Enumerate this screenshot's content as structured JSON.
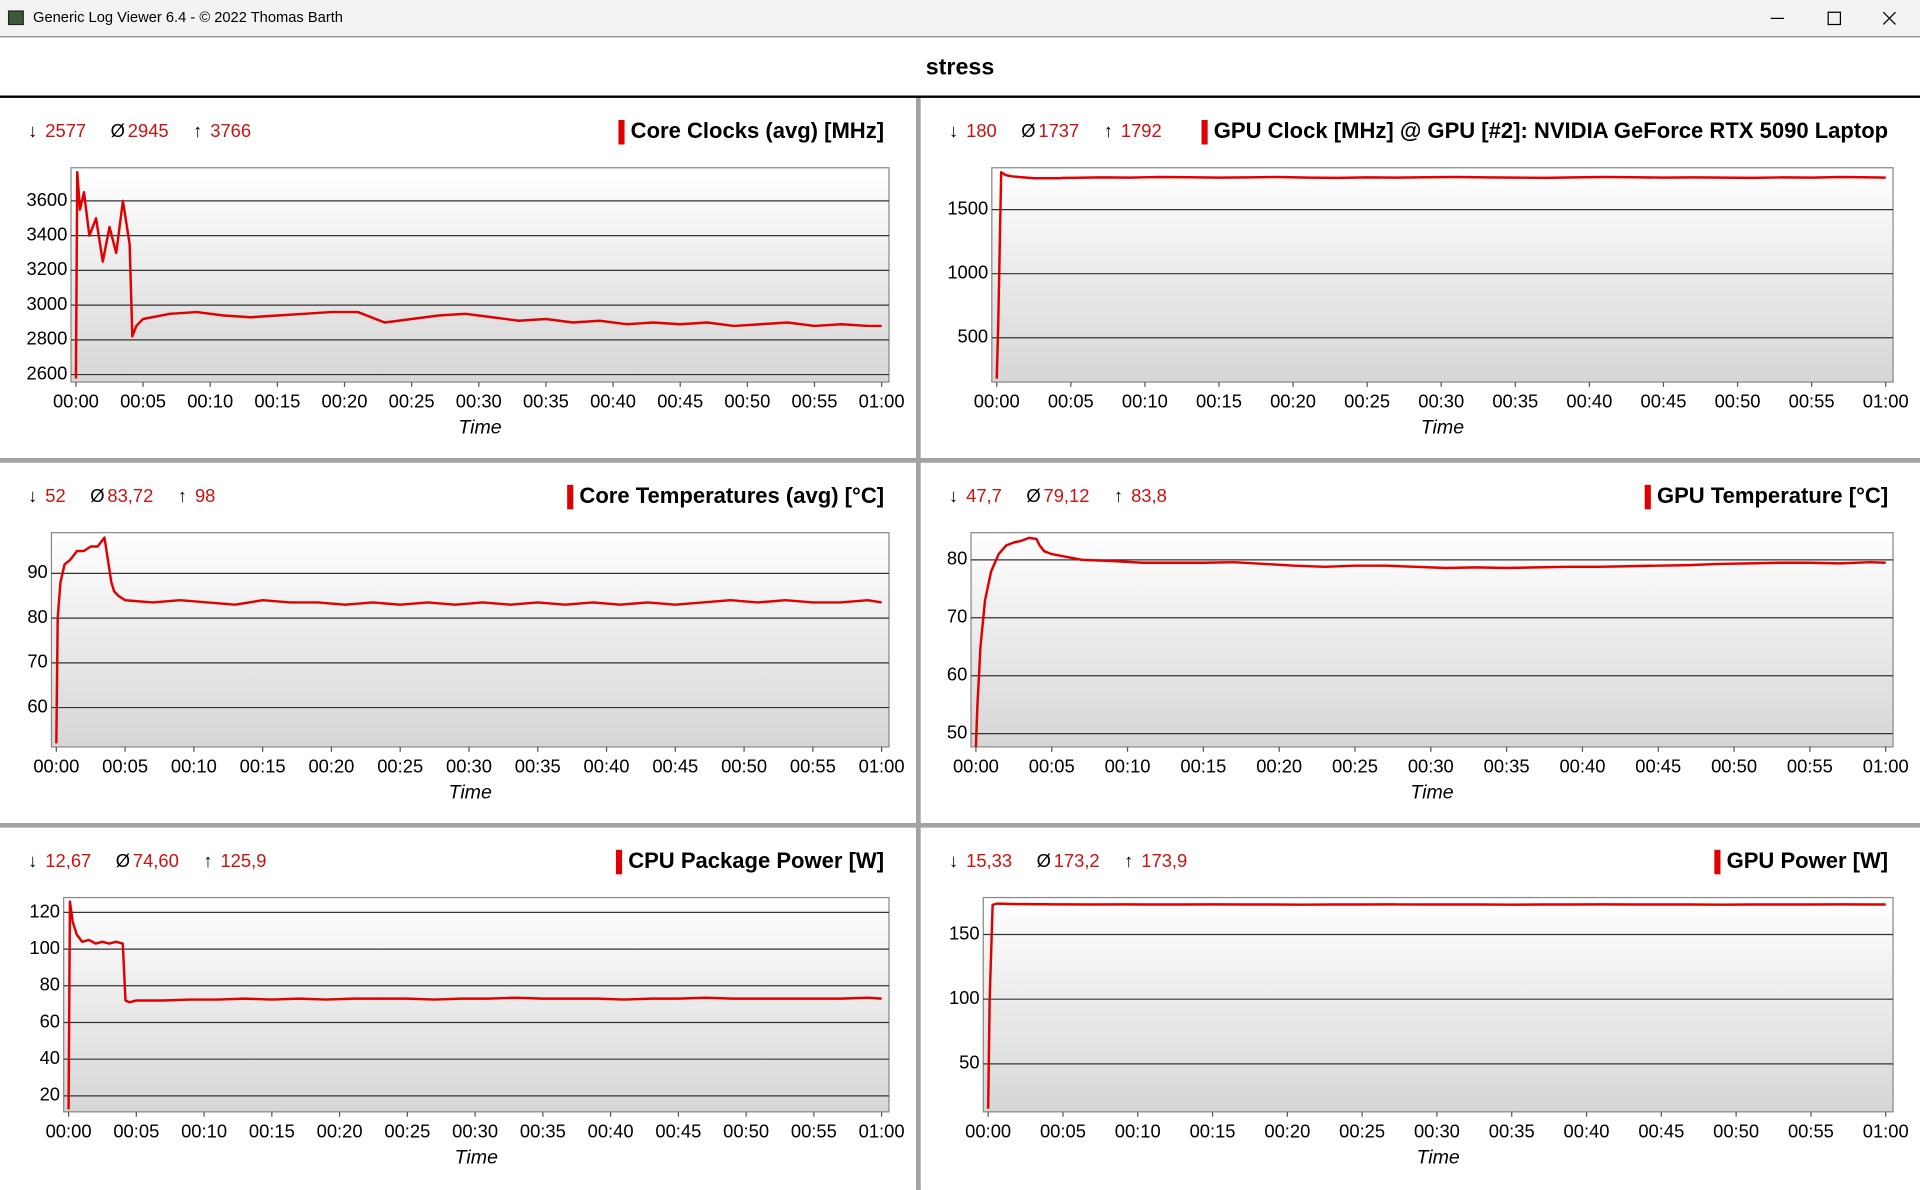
{
  "window": {
    "title": "Generic Log Viewer 6.4 - © 2022 Thomas Barth"
  },
  "header": {
    "title": "stress"
  },
  "stat_symbols": [
    "↓",
    "Ø",
    "↑"
  ],
  "chart_data": [
    {
      "type": "line",
      "xlabel": "Time",
      "stats": [
        2577,
        2945,
        3766
      ],
      "x": [
        0,
        0.1,
        0.3,
        0.6,
        1,
        1.5,
        2,
        2.5,
        3,
        3.5,
        4,
        4.2,
        4.5,
        5,
        7,
        9,
        11,
        13,
        15,
        17,
        19,
        21,
        23,
        25,
        27,
        29,
        31,
        33,
        35,
        37,
        39,
        41,
        43,
        45,
        47,
        49,
        51,
        53,
        55,
        57,
        59,
        60
      ],
      "series": [
        {
          "name": "Core Clocks (avg) [MHz]",
          "color": "#e00000",
          "values": [
            2577,
            3766,
            3550,
            3650,
            3400,
            3500,
            3250,
            3450,
            3300,
            3600,
            3350,
            2820,
            2880,
            2920,
            2950,
            2960,
            2940,
            2930,
            2940,
            2950,
            2960,
            2960,
            2900,
            2920,
            2940,
            2950,
            2930,
            2910,
            2920,
            2900,
            2910,
            2890,
            2900,
            2890,
            2900,
            2880,
            2890,
            2900,
            2880,
            2890,
            2880,
            2880
          ]
        }
      ],
      "xlim": [
        0,
        60
      ],
      "xticks": [
        {
          "value": 0,
          "label": "00:00"
        },
        {
          "value": 5,
          "label": "00:05"
        },
        {
          "value": 10,
          "label": "00:10"
        },
        {
          "value": 15,
          "label": "00:15"
        },
        {
          "value": 20,
          "label": "00:20"
        },
        {
          "value": 25,
          "label": "00:25"
        },
        {
          "value": 30,
          "label": "00:30"
        },
        {
          "value": 35,
          "label": "00:35"
        },
        {
          "value": 40,
          "label": "00:40"
        },
        {
          "value": 45,
          "label": "00:45"
        },
        {
          "value": 50,
          "label": "00:50"
        },
        {
          "value": 55,
          "label": "00:55"
        },
        {
          "value": 60,
          "label": "01:00"
        }
      ],
      "ylim": [
        2557,
        3791
      ],
      "yticks": [
        2600,
        2800,
        3000,
        3200,
        3400,
        3600
      ],
      "grid": true
    },
    {
      "type": "line",
      "xlabel": "Time",
      "stats": [
        180,
        1737,
        1792
      ],
      "x": [
        0,
        0.1,
        0.3,
        0.6,
        1,
        1.5,
        2,
        2.5,
        3,
        3.5,
        4,
        4.2,
        4.5,
        5,
        7,
        9,
        11,
        13,
        15,
        17,
        19,
        21,
        23,
        25,
        27,
        29,
        31,
        33,
        35,
        37,
        39,
        41,
        43,
        45,
        47,
        49,
        51,
        53,
        55,
        57,
        59,
        60
      ],
      "series": [
        {
          "name": "GPU Clock [MHz] @ GPU [#2]: NVIDIA GeForce RTX 5090 Laptop",
          "color": "#e00000",
          "values": [
            180,
            600,
            1792,
            1770,
            1760,
            1755,
            1750,
            1745,
            1745,
            1745,
            1745,
            1745,
            1748,
            1748,
            1752,
            1750,
            1755,
            1753,
            1750,
            1752,
            1755,
            1750,
            1748,
            1752,
            1750,
            1753,
            1755,
            1752,
            1750,
            1748,
            1752,
            1755,
            1753,
            1750,
            1752,
            1750,
            1748,
            1752,
            1750,
            1755,
            1752,
            1750
          ]
        }
      ],
      "xlim": [
        0,
        60
      ],
      "xticks": [
        {
          "value": 0,
          "label": "00:00"
        },
        {
          "value": 5,
          "label": "00:05"
        },
        {
          "value": 10,
          "label": "00:10"
        },
        {
          "value": 15,
          "label": "00:15"
        },
        {
          "value": 20,
          "label": "00:20"
        },
        {
          "value": 25,
          "label": "00:25"
        },
        {
          "value": 30,
          "label": "00:30"
        },
        {
          "value": 35,
          "label": "00:35"
        },
        {
          "value": 40,
          "label": "00:40"
        },
        {
          "value": 45,
          "label": "00:45"
        },
        {
          "value": 50,
          "label": "00:50"
        },
        {
          "value": 55,
          "label": "00:55"
        },
        {
          "value": 60,
          "label": "01:00"
        }
      ],
      "ylim": [
        154,
        1827
      ],
      "yticks": [
        500,
        1000,
        1500
      ],
      "grid": true
    },
    {
      "type": "line",
      "xlabel": "Time",
      "stats": [
        52,
        {
          "value": 83.72,
          "label": "83,72"
        },
        98
      ],
      "x": [
        0,
        0.1,
        0.3,
        0.6,
        1,
        1.5,
        2,
        2.5,
        3,
        3.5,
        4,
        4.2,
        4.5,
        5,
        7,
        9,
        11,
        13,
        15,
        17,
        19,
        21,
        23,
        25,
        27,
        29,
        31,
        33,
        35,
        37,
        39,
        41,
        43,
        45,
        47,
        49,
        51,
        53,
        55,
        57,
        59,
        60
      ],
      "series": [
        {
          "name": "Core Temperatures (avg) [°C]",
          "color": "#e00000",
          "values": [
            52,
            80,
            88,
            92,
            93,
            95,
            95,
            96,
            96,
            98,
            88,
            86,
            85,
            84,
            83.5,
            84,
            83.5,
            83,
            84,
            83.5,
            83.5,
            83,
            83.5,
            83,
            83.5,
            83,
            83.5,
            83,
            83.5,
            83,
            83.5,
            83,
            83.5,
            83,
            83.5,
            84,
            83.5,
            84,
            83.5,
            83.5,
            84,
            83.5
          ]
        }
      ],
      "xlim": [
        0,
        60
      ],
      "xticks": [
        {
          "value": 0,
          "label": "00:00"
        },
        {
          "value": 5,
          "label": "00:05"
        },
        {
          "value": 10,
          "label": "00:10"
        },
        {
          "value": 15,
          "label": "00:15"
        },
        {
          "value": 20,
          "label": "00:20"
        },
        {
          "value": 25,
          "label": "00:25"
        },
        {
          "value": 30,
          "label": "00:30"
        },
        {
          "value": 35,
          "label": "00:35"
        },
        {
          "value": 40,
          "label": "00:40"
        },
        {
          "value": 45,
          "label": "00:45"
        },
        {
          "value": 50,
          "label": "00:50"
        },
        {
          "value": 55,
          "label": "00:55"
        },
        {
          "value": 60,
          "label": "01:00"
        }
      ],
      "ylim": [
        51.2,
        99.1
      ],
      "yticks": [
        60,
        70,
        80,
        90
      ],
      "grid": true
    },
    {
      "type": "line",
      "xlabel": "Time",
      "stats": [
        {
          "value": 47.7,
          "label": "47,7"
        },
        {
          "value": 79.12,
          "label": "79,12"
        },
        {
          "value": 83.8,
          "label": "83,8"
        }
      ],
      "x": [
        0,
        0.1,
        0.3,
        0.6,
        1,
        1.5,
        2,
        2.5,
        3,
        3.5,
        4,
        4.2,
        4.5,
        5,
        7,
        9,
        11,
        13,
        15,
        17,
        19,
        21,
        23,
        25,
        27,
        29,
        31,
        33,
        35,
        37,
        39,
        41,
        43,
        45,
        47,
        49,
        51,
        53,
        55,
        57,
        59,
        60
      ],
      "series": [
        {
          "name": "GPU Temperature [°C]",
          "color": "#e00000",
          "values": [
            47.7,
            55,
            65,
            73,
            78,
            81,
            82.5,
            83,
            83.3,
            83.8,
            83.6,
            82.5,
            81.5,
            81,
            80,
            79.8,
            79.5,
            79.5,
            79.5,
            79.6,
            79.3,
            79,
            78.8,
            79,
            79,
            78.8,
            78.6,
            78.7,
            78.6,
            78.7,
            78.8,
            78.8,
            78.9,
            79,
            79.1,
            79.3,
            79.4,
            79.5,
            79.5,
            79.4,
            79.6,
            79.5
          ]
        }
      ],
      "xlim": [
        0,
        60
      ],
      "xticks": [
        {
          "value": 0,
          "label": "00:00"
        },
        {
          "value": 5,
          "label": "00:05"
        },
        {
          "value": 10,
          "label": "00:10"
        },
        {
          "value": 15,
          "label": "00:15"
        },
        {
          "value": 20,
          "label": "00:20"
        },
        {
          "value": 25,
          "label": "00:25"
        },
        {
          "value": 30,
          "label": "00:30"
        },
        {
          "value": 35,
          "label": "00:35"
        },
        {
          "value": 40,
          "label": "00:40"
        },
        {
          "value": 45,
          "label": "00:45"
        },
        {
          "value": 50,
          "label": "00:50"
        },
        {
          "value": 55,
          "label": "00:55"
        },
        {
          "value": 60,
          "label": "01:00"
        }
      ],
      "ylim": [
        47.7,
        84.7
      ],
      "yticks": [
        50,
        60,
        70,
        80
      ],
      "grid": true
    },
    {
      "type": "line",
      "xlabel": "Time",
      "stats": [
        {
          "value": 12.67,
          "label": "12,67"
        },
        {
          "value": 74.6,
          "label": "74,60"
        },
        {
          "value": 125.9,
          "label": "125,9"
        }
      ],
      "x": [
        0,
        0.1,
        0.3,
        0.6,
        1,
        1.5,
        2,
        2.5,
        3,
        3.5,
        4,
        4.2,
        4.5,
        5,
        7,
        9,
        11,
        13,
        15,
        17,
        19,
        21,
        23,
        25,
        27,
        29,
        31,
        33,
        35,
        37,
        39,
        41,
        43,
        45,
        47,
        49,
        51,
        53,
        55,
        57,
        59,
        60
      ],
      "series": [
        {
          "name": "CPU Package Power [W]",
          "color": "#e00000",
          "values": [
            12.67,
            125.9,
            115,
            108,
            104,
            105,
            103,
            104,
            103,
            104,
            103,
            72,
            71,
            72,
            72,
            72.5,
            72.5,
            73,
            72.5,
            73,
            72.5,
            73,
            73,
            73,
            72.5,
            73,
            73,
            73.5,
            73,
            73,
            73,
            72.5,
            73,
            73,
            73.5,
            73,
            73,
            73,
            73,
            73,
            73.5,
            73
          ]
        }
      ],
      "xlim": [
        0,
        60
      ],
      "xticks": [
        {
          "value": 0,
          "label": "00:00"
        },
        {
          "value": 5,
          "label": "00:05"
        },
        {
          "value": 10,
          "label": "00:10"
        },
        {
          "value": 15,
          "label": "00:15"
        },
        {
          "value": 20,
          "label": "00:20"
        },
        {
          "value": 25,
          "label": "00:25"
        },
        {
          "value": 30,
          "label": "00:30"
        },
        {
          "value": 35,
          "label": "00:35"
        },
        {
          "value": 40,
          "label": "00:40"
        },
        {
          "value": 45,
          "label": "00:45"
        },
        {
          "value": 50,
          "label": "00:50"
        },
        {
          "value": 55,
          "label": "00:55"
        },
        {
          "value": 60,
          "label": "01:00"
        }
      ],
      "ylim": [
        11.3,
        128.1
      ],
      "yticks": [
        20,
        40,
        60,
        80,
        100,
        120
      ],
      "grid": true
    },
    {
      "type": "line",
      "xlabel": "Time",
      "stats": [
        {
          "value": 15.33,
          "label": "15,33"
        },
        {
          "value": 173.2,
          "label": "173,2"
        },
        {
          "value": 173.9,
          "label": "173,9"
        }
      ],
      "x": [
        0,
        0.1,
        0.3,
        0.6,
        1,
        1.5,
        2,
        2.5,
        3,
        3.5,
        4,
        4.2,
        4.5,
        5,
        7,
        9,
        11,
        13,
        15,
        17,
        19,
        21,
        23,
        25,
        27,
        29,
        31,
        33,
        35,
        37,
        39,
        41,
        43,
        45,
        47,
        49,
        51,
        53,
        55,
        57,
        59,
        60
      ],
      "series": [
        {
          "name": "GPU Power [W]",
          "color": "#e00000",
          "values": [
            15.33,
            100,
            173,
            173.9,
            173.8,
            173.6,
            173.5,
            173.5,
            173.4,
            173.4,
            173.4,
            173.3,
            173.3,
            173.3,
            173.2,
            173.3,
            173.2,
            173.2,
            173.3,
            173.2,
            173.2,
            173.1,
            173.2,
            173.2,
            173.3,
            173.2,
            173.2,
            173.2,
            173.1,
            173.2,
            173.2,
            173.3,
            173.2,
            173.2,
            173.2,
            173.1,
            173.2,
            173.2,
            173.2,
            173.3,
            173.2,
            173.2
          ]
        }
      ],
      "xlim": [
        0,
        60
      ],
      "xticks": [
        {
          "value": 0,
          "label": "00:00"
        },
        {
          "value": 5,
          "label": "00:05"
        },
        {
          "value": 10,
          "label": "00:10"
        },
        {
          "value": 15,
          "label": "00:15"
        },
        {
          "value": 20,
          "label": "00:20"
        },
        {
          "value": 25,
          "label": "00:25"
        },
        {
          "value": 30,
          "label": "00:30"
        },
        {
          "value": 35,
          "label": "00:35"
        },
        {
          "value": 40,
          "label": "00:40"
        },
        {
          "value": 45,
          "label": "00:45"
        },
        {
          "value": 50,
          "label": "00:50"
        },
        {
          "value": 55,
          "label": "00:55"
        },
        {
          "value": 60,
          "label": "01:00"
        }
      ],
      "ylim": [
        12.9,
        178.6
      ],
      "yticks": [
        50,
        100,
        150
      ],
      "grid": true
    }
  ]
}
